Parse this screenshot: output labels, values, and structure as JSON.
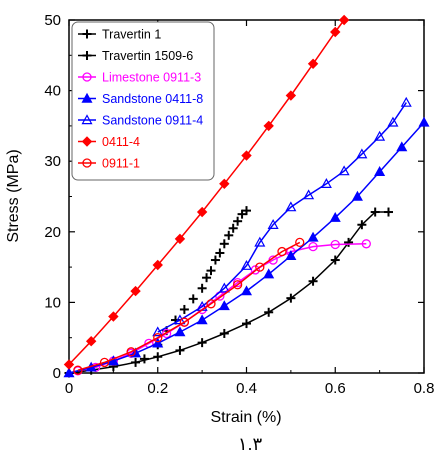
{
  "chart_data": {
    "type": "scatter",
    "title": "",
    "xlabel": "Strain (%)",
    "ylabel": "Stress (MPa)",
    "xlim": [
      0,
      0.8
    ],
    "ylim": [
      0,
      50
    ],
    "xticks": [
      "0",
      "0.2",
      "0.4",
      "0.6",
      "0.8"
    ],
    "yticks": [
      "0",
      "10",
      "20",
      "30",
      "40",
      "50"
    ],
    "grid": false,
    "legend_position": "top-left",
    "caption": "۱.۳",
    "series": [
      {
        "name": "Travertin 1",
        "color": "#000000",
        "marker": "plus",
        "line": true,
        "points": [
          [
            0,
            0
          ],
          [
            0.05,
            0.4
          ],
          [
            0.1,
            0.9
          ],
          [
            0.15,
            1.5
          ],
          [
            0.2,
            2.3
          ],
          [
            0.25,
            3.2
          ],
          [
            0.3,
            4.3
          ],
          [
            0.35,
            5.6
          ],
          [
            0.4,
            7
          ],
          [
            0.45,
            8.6
          ],
          [
            0.5,
            10.6
          ],
          [
            0.55,
            13
          ],
          [
            0.6,
            16
          ],
          [
            0.63,
            18.5
          ],
          [
            0.66,
            21
          ],
          [
            0.69,
            22.8
          ],
          [
            0.72,
            22.8
          ]
        ]
      },
      {
        "name": "Travertin 1509-6",
        "color": "#000000",
        "marker": "plus",
        "line": false,
        "points": [
          [
            0.17,
            2
          ],
          [
            0.2,
            4
          ],
          [
            0.22,
            6
          ],
          [
            0.24,
            7.5
          ],
          [
            0.26,
            9
          ],
          [
            0.28,
            10.5
          ],
          [
            0.3,
            12
          ],
          [
            0.31,
            13.5
          ],
          [
            0.32,
            14.5
          ],
          [
            0.33,
            16
          ],
          [
            0.34,
            17
          ],
          [
            0.35,
            18.3
          ],
          [
            0.36,
            19.5
          ],
          [
            0.37,
            20.5
          ],
          [
            0.38,
            21.5
          ],
          [
            0.39,
            22.5
          ],
          [
            0.4,
            23
          ]
        ]
      },
      {
        "name": "Limestone 0911-3",
        "color": "#ff00ff",
        "marker": "circle-open",
        "line": true,
        "points": [
          [
            0.02,
            0.3
          ],
          [
            0.06,
            0.8
          ],
          [
            0.1,
            1.7
          ],
          [
            0.14,
            2.8
          ],
          [
            0.18,
            4.2
          ],
          [
            0.22,
            5.6
          ],
          [
            0.26,
            7.2
          ],
          [
            0.3,
            9
          ],
          [
            0.34,
            10.9
          ],
          [
            0.38,
            12.8
          ],
          [
            0.42,
            14.6
          ],
          [
            0.46,
            16
          ],
          [
            0.5,
            17.2
          ],
          [
            0.55,
            17.9
          ],
          [
            0.6,
            18.2
          ],
          [
            0.67,
            18.3
          ]
        ]
      },
      {
        "name": "Sandstone 0411-8",
        "color": "#0000ff",
        "marker": "triangle-filled",
        "line": true,
        "points": [
          [
            0,
            0
          ],
          [
            0.05,
            0.8
          ],
          [
            0.1,
            1.7
          ],
          [
            0.15,
            2.8
          ],
          [
            0.2,
            4.2
          ],
          [
            0.25,
            5.8
          ],
          [
            0.3,
            7.5
          ],
          [
            0.35,
            9.5
          ],
          [
            0.4,
            11.6
          ],
          [
            0.45,
            14
          ],
          [
            0.5,
            16.6
          ],
          [
            0.55,
            19.2
          ],
          [
            0.6,
            22
          ],
          [
            0.65,
            25
          ],
          [
            0.7,
            28.5
          ],
          [
            0.75,
            32
          ],
          [
            0.8,
            35.5
          ]
        ]
      },
      {
        "name": "Sandstone 0911-4",
        "color": "#0000ff",
        "marker": "triangle-open",
        "line": true,
        "points": [
          [
            0.2,
            5.8
          ],
          [
            0.25,
            7.5
          ],
          [
            0.3,
            9.4
          ],
          [
            0.35,
            12
          ],
          [
            0.4,
            15.2
          ],
          [
            0.43,
            18.5
          ],
          [
            0.46,
            21
          ],
          [
            0.5,
            23.5
          ],
          [
            0.54,
            25.2
          ],
          [
            0.58,
            26.8
          ],
          [
            0.62,
            28.6
          ],
          [
            0.66,
            31
          ],
          [
            0.7,
            33.5
          ],
          [
            0.73,
            35.5
          ],
          [
            0.76,
            38.3
          ]
        ]
      },
      {
        "name": "0411-4",
        "color": "#ff0000",
        "marker": "diamond-filled",
        "line": true,
        "points": [
          [
            0,
            1.2
          ],
          [
            0.05,
            4.5
          ],
          [
            0.1,
            8
          ],
          [
            0.15,
            11.6
          ],
          [
            0.2,
            15.3
          ],
          [
            0.25,
            19
          ],
          [
            0.3,
            22.8
          ],
          [
            0.35,
            26.8
          ],
          [
            0.4,
            30.8
          ],
          [
            0.45,
            35
          ],
          [
            0.5,
            39.3
          ],
          [
            0.55,
            43.8
          ],
          [
            0.6,
            48.3
          ],
          [
            0.62,
            50
          ]
        ]
      },
      {
        "name": "0911-1",
        "color": "#ff0000",
        "marker": "circle-open",
        "line": true,
        "points": [
          [
            0.02,
            0.4
          ],
          [
            0.08,
            1.5
          ],
          [
            0.14,
            3
          ],
          [
            0.2,
            5
          ],
          [
            0.26,
            7.2
          ],
          [
            0.32,
            9.8
          ],
          [
            0.38,
            12.5
          ],
          [
            0.43,
            15
          ],
          [
            0.48,
            17.2
          ],
          [
            0.52,
            18.5
          ]
        ]
      }
    ]
  }
}
